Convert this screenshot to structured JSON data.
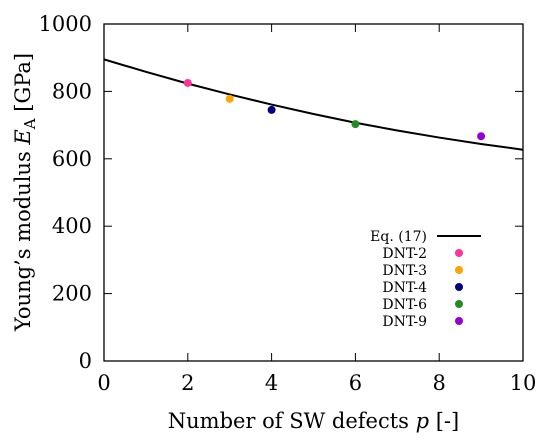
{
  "chart_data": {
    "type": "scatter",
    "xlabel": {
      "prefix": "Number of SW defects ",
      "var": "p",
      "suffix": " [-]"
    },
    "ylabel": {
      "prefix": "Young’s modulus ",
      "var": "E",
      "sub": "A",
      "suffix": " [GPa]"
    },
    "xlim": [
      0,
      10
    ],
    "ylim": [
      0,
      1000
    ],
    "xticks": [
      0,
      2,
      4,
      6,
      8,
      10
    ],
    "yticks": [
      0,
      200,
      400,
      600,
      800,
      1000
    ],
    "grid": false,
    "legend_position": "bottom-right",
    "series": [
      {
        "name": "Eq. (17)",
        "kind": "line",
        "color": "#000000",
        "x": [
          0,
          1,
          2,
          3,
          4,
          5,
          6,
          7,
          8,
          9,
          10
        ],
        "y": [
          895,
          858,
          823,
          791,
          761,
          733,
          707,
          684,
          663,
          644,
          627
        ]
      },
      {
        "name": "DNT-2",
        "kind": "point",
        "color": "#ff3399",
        "x": [
          2
        ],
        "y": [
          825
        ]
      },
      {
        "name": "DNT-3",
        "kind": "point",
        "color": "#ffa500",
        "x": [
          3
        ],
        "y": [
          778
        ]
      },
      {
        "name": "DNT-4",
        "kind": "point",
        "color": "#000080",
        "x": [
          4
        ],
        "y": [
          745
        ]
      },
      {
        "name": "DNT-6",
        "kind": "point",
        "color": "#228b22",
        "x": [
          6
        ],
        "y": [
          703
        ]
      },
      {
        "name": "DNT-9",
        "kind": "point",
        "color": "#9400d3",
        "x": [
          9
        ],
        "y": [
          667
        ]
      }
    ]
  }
}
